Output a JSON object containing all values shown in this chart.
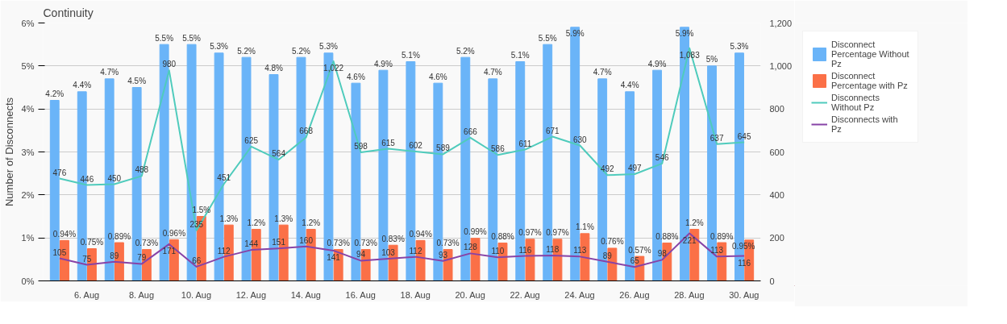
{
  "chart_data": {
    "type": "bar",
    "title": "Continuity",
    "ylabel": "Number of Disconnects",
    "categories": [
      null,
      "6. Aug",
      null,
      "8. Aug",
      null,
      "10. Aug",
      null,
      "12. Aug",
      null,
      "14. Aug",
      null,
      "16. Aug",
      null,
      "18. Aug",
      null,
      "20. Aug",
      null,
      "22. Aug",
      null,
      "24. Aug",
      null,
      "26. Aug",
      null,
      "28. Aug",
      null,
      "30. Aug"
    ],
    "ylim": [
      0,
      6
    ],
    "yticks": [
      {
        "value": 0,
        "label": "0%"
      },
      {
        "value": 1,
        "label": "1%"
      },
      {
        "value": 2,
        "label": "2%"
      },
      {
        "value": 3,
        "label": "3%"
      },
      {
        "value": 4,
        "label": "4%"
      },
      {
        "value": 5,
        "label": "5%"
      },
      {
        "value": 6,
        "label": "6%"
      }
    ],
    "y2lim": [
      0,
      1200
    ],
    "y2ticks": [
      0,
      200,
      400,
      600,
      800,
      {
        "value": 1000,
        "label": "1,000"
      },
      {
        "value": 1200,
        "label": "1,200"
      }
    ],
    "grid": "y",
    "legend": "right",
    "series": [
      {
        "name": "Disconnect Percentage Without Pz",
        "color": "#6ab4f8",
        "values": [
          4.2,
          4.4,
          4.7,
          4.5,
          5.5,
          5.5,
          5.3,
          5.2,
          4.8,
          5.2,
          5.3,
          4.6,
          4.9,
          5.1,
          4.6,
          5.2,
          4.7,
          5.1,
          5.5,
          5.9,
          4.7,
          4.4,
          4.9,
          5.9,
          5,
          5.3
        ],
        "value_labels": [
          "4.2%",
          "4.4%",
          "4.7%",
          "4.5%",
          "5.5%",
          "5.5%",
          "5.3%",
          "5.2%",
          "4.8%",
          "5.2%",
          "5.3%",
          "4.6%",
          "4.9%",
          "5.1%",
          "4.6%",
          "5.2%",
          "4.7%",
          "5.1%",
          "5.5%",
          "5.9%",
          "4.7%",
          "4.4%",
          "4.9%",
          "5.9%",
          "5%",
          "5.3%"
        ]
      },
      {
        "name": "Disconnect Percentage with Pz",
        "color": "#fb7047",
        "values": [
          0.94,
          0.75,
          0.89,
          0.73,
          0.96,
          1.5,
          1.3,
          1.2,
          1.3,
          1.2,
          0.73,
          0.73,
          0.83,
          0.94,
          0.73,
          0.99,
          0.88,
          0.97,
          0.97,
          1.1,
          0.76,
          0.57,
          0.88,
          1.2,
          0.89,
          0.95
        ],
        "value_labels": [
          "0.94%",
          "0.75%",
          "0.89%",
          "0.73%",
          "0.96%",
          "1.5%",
          "1.3%",
          "1.2%",
          "1.3%",
          "1.2%",
          "0.73%",
          "0.73%",
          "0.83%",
          "0.94%",
          "0.73%",
          "0.99%",
          "0.88%",
          "0.97%",
          "0.97%",
          "1.1%",
          "0.76%",
          "0.57%",
          "0.88%",
          "1.2%",
          "0.89%",
          "0.95%"
        ]
      },
      {
        "name": "Disconnects Without Pz",
        "type": "line",
        "axis": "y2",
        "color": "#4fcbbc",
        "values": [
          476,
          446,
          450,
          488,
          980,
          235,
          451,
          625,
          564,
          668,
          1022,
          598,
          615,
          602,
          589,
          666,
          586,
          611,
          671,
          630,
          492,
          497,
          546,
          1083,
          637,
          645
        ],
        "value_labels": [
          "476",
          "446",
          "450",
          "488",
          "980",
          "235",
          "451",
          "625",
          "564",
          "668",
          "1,022",
          "598",
          "615",
          "602",
          "589",
          "666",
          "586",
          "611",
          "671",
          "630",
          "492",
          "497",
          "546",
          "1,083",
          "637",
          "645"
        ]
      },
      {
        "name": "Disconnects with Pz",
        "type": "line",
        "axis": "y2",
        "color": "#8743a6",
        "values": [
          105,
          75,
          89,
          79,
          171,
          66,
          112,
          144,
          151,
          160,
          141,
          94,
          103,
          112,
          93,
          128,
          110,
          116,
          118,
          113,
          89,
          65,
          98,
          221,
          113,
          116
        ],
        "value_labels": [
          "105",
          "75",
          "89",
          "79",
          "171",
          "66",
          "112",
          "144",
          "151",
          "160",
          "141",
          "94",
          "103",
          "112",
          "93",
          "128",
          "110",
          "116",
          "118",
          "113",
          "89",
          "65",
          "98",
          "221",
          "113",
          "116"
        ]
      }
    ]
  }
}
